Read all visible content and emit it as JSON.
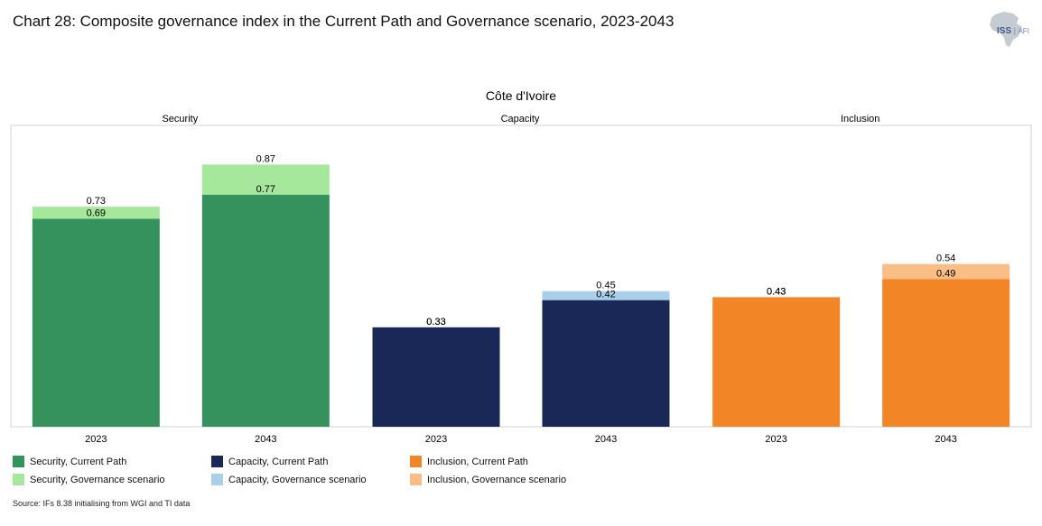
{
  "header": {
    "title": "Chart 28: Composite governance index in the Current Path and Governance scenario, 2023-2043",
    "logo_text_iss": "ISS",
    "logo_text_afi": "AFI"
  },
  "chart_data": {
    "type": "bar",
    "title": "Côte d'Ivoire",
    "ylim": [
      0,
      1
    ],
    "grid": false,
    "legend_position": "bottom-left",
    "groups": [
      {
        "name": "Security",
        "color_current": "#35925d",
        "color_scenario": "#a5e89b",
        "bars": [
          {
            "year": "2023",
            "current": 0.69,
            "scenario": 0.73,
            "current_label": "0.69",
            "scenario_label": "0.73"
          },
          {
            "year": "2043",
            "current": 0.77,
            "scenario": 0.87,
            "current_label": "0.77",
            "scenario_label": "0.87"
          }
        ]
      },
      {
        "name": "Capacity",
        "color_current": "#1a2857",
        "color_scenario": "#a9cfea",
        "bars": [
          {
            "year": "2023",
            "current": 0.33,
            "scenario": 0.33,
            "current_label": "0.33",
            "scenario_label": "0.33"
          },
          {
            "year": "2043",
            "current": 0.42,
            "scenario": 0.45,
            "current_label": "0.42",
            "scenario_label": "0.45"
          }
        ]
      },
      {
        "name": "Inclusion",
        "color_current": "#f28526",
        "color_scenario": "#fbbd86",
        "bars": [
          {
            "year": "2023",
            "current": 0.43,
            "scenario": 0.43,
            "current_label": "0.43",
            "scenario_label": "0.43"
          },
          {
            "year": "2043",
            "current": 0.49,
            "scenario": 0.54,
            "current_label": "0.49",
            "scenario_label": "0.54"
          }
        ]
      }
    ]
  },
  "legend": [
    {
      "label": "Security, Current Path",
      "color": "#35925d"
    },
    {
      "label": "Security, Governance scenario",
      "color": "#a5e89b"
    },
    {
      "label": "Capacity, Current Path",
      "color": "#1a2857"
    },
    {
      "label": "Capacity, Governance scenario",
      "color": "#a9cfea"
    },
    {
      "label": "Inclusion, Current Path",
      "color": "#f28526"
    },
    {
      "label": "Inclusion, Governance scenario",
      "color": "#fbbd86"
    }
  ],
  "footer": {
    "source": "Source: IFs 8.38 initialising from WGI and TI data"
  }
}
